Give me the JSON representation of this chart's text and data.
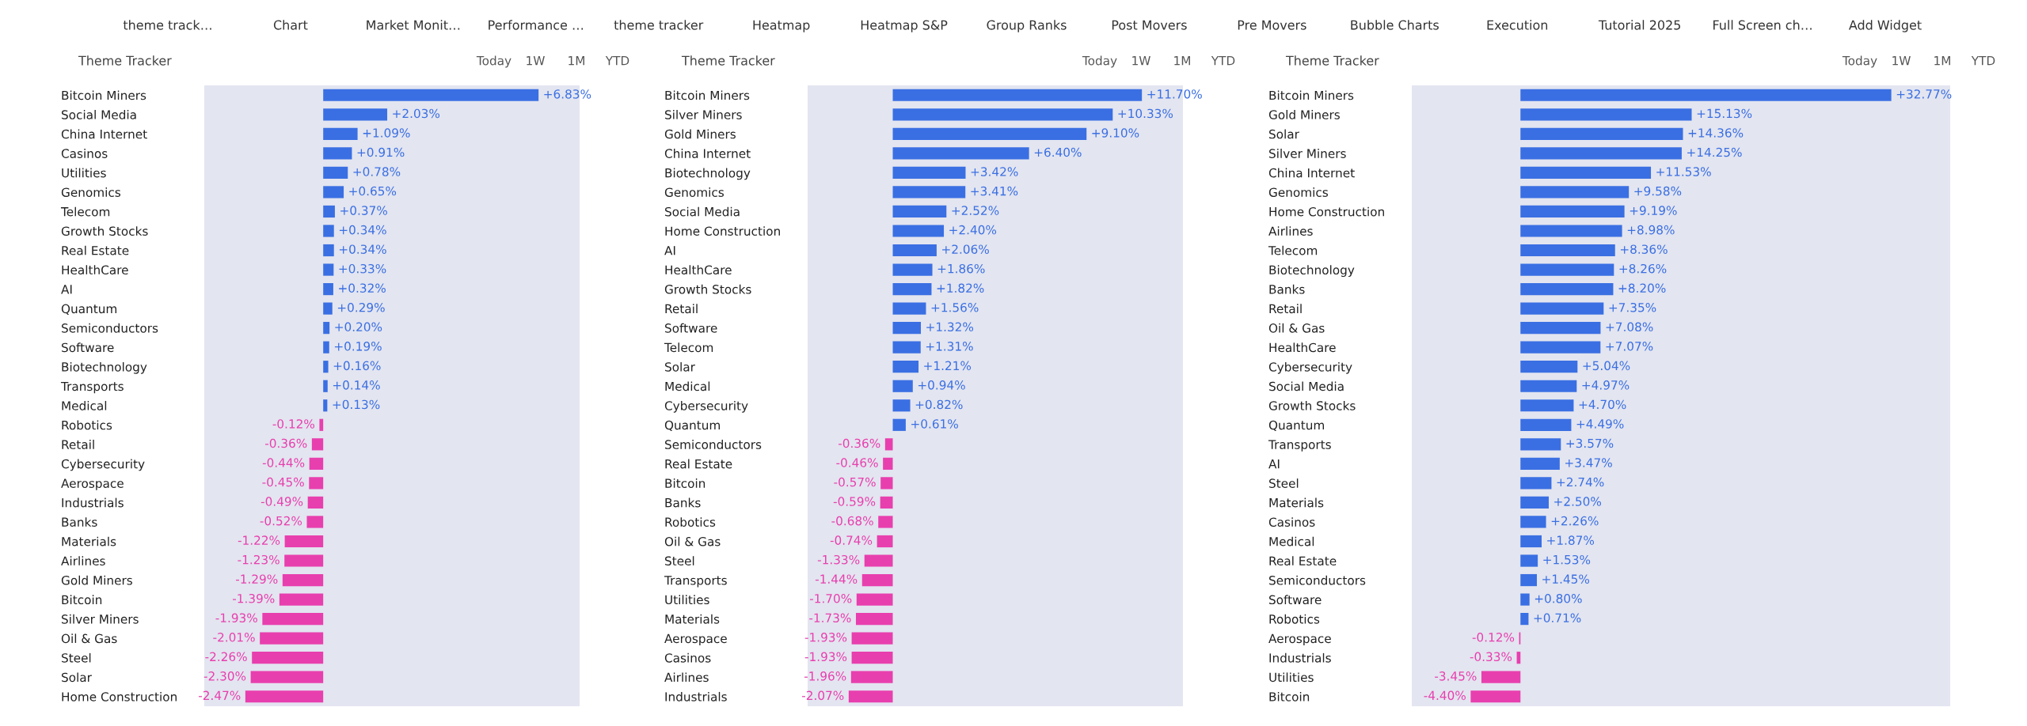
{
  "chart_data": [
    {
      "type": "bar",
      "orientation": "horizontal",
      "title": "Theme Tracker",
      "tick_labels": "y",
      "annotations": [
        "Today",
        "1W",
        "1M",
        "YTD",
        "theme track…",
        "Chart",
        "Market Monit…",
        "Performance …",
        "theme tracker",
        "Heatmap",
        "Heatmap S&P",
        "Group Ranks",
        "Post Movers",
        "Pre Movers",
        "Bubble Charts",
        "Execution",
        "Tutorial 2025",
        "Full Screen ch…",
        "Add Widget"
      ],
      "categories": [
        "Bitcoin Miners",
        "Social Media",
        "China Internet",
        "Casinos",
        "Utilities",
        "Genomics",
        "Telecom",
        "Growth Stocks",
        "Real Estate",
        "HealthCare",
        "AI",
        "Quantum",
        "Semiconductors",
        "Software",
        "Biotechnology",
        "Transports",
        "Medical",
        "Robotics",
        "Retail",
        "Cybersecurity",
        "Aerospace",
        "Industrials",
        "Banks",
        "Materials",
        "Airlines",
        "Gold Miners",
        "Bitcoin",
        "Silver Miners",
        "Oil & Gas",
        "Steel",
        "Solar",
        "Home Construction"
      ],
      "values": [
        6.83,
        2.03,
        1.09,
        0.91,
        0.78,
        0.65,
        0.37,
        0.34,
        0.34,
        0.33,
        0.32,
        0.29,
        0.2,
        0.19,
        0.16,
        0.14,
        0.13,
        -0.12,
        -0.36,
        -0.44,
        -0.45,
        -0.49,
        -0.52,
        -1.22,
        -1.23,
        -1.29,
        -1.39,
        -1.93,
        -2.01,
        -2.26,
        -2.3,
        -2.47
      ],
      "value_labels": [
        "+6.83%",
        "+2.03%",
        "+1.09%",
        "+0.91%",
        "+0.78%",
        "+0.65%",
        "+0.37%",
        "+0.34%",
        "+0.34%",
        "+0.33%",
        "+0.32%",
        "+0.29%",
        "+0.20%",
        "+0.19%",
        "+0.16%",
        "+0.14%",
        "+0.13%",
        "-0.12%",
        "-0.36%",
        "-0.44%",
        "-0.45%",
        "-0.49%",
        "-0.52%",
        "-1.22%",
        "-1.23%",
        "-1.29%",
        "-1.39%",
        "-1.93%",
        "-2.01%",
        "-2.26%",
        "-2.30%",
        "-2.47%"
      ],
      "colors": [
        "#3a6fe3",
        "#3a6fe3",
        "#3a6fe3",
        "#3a6fe3",
        "#3a6fe3",
        "#3a6fe3",
        "#3a6fe3",
        "#3a6fe3",
        "#3a6fe3",
        "#3a6fe3",
        "#3a6fe3",
        "#3a6fe3",
        "#3a6fe3",
        "#3a6fe3",
        "#3a6fe3",
        "#3a6fe3",
        "#3a6fe3",
        "#e83fae",
        "#e83fae",
        "#e83fae",
        "#e83fae",
        "#e83fae",
        "#e83fae",
        "#e83fae",
        "#e83fae",
        "#e83fae",
        "#e83fae",
        "#e83fae",
        "#e83fae",
        "#e83fae",
        "#e83fae",
        "#e83fae"
      ]
    },
    {
      "type": "bar",
      "orientation": "horizontal",
      "title": "Theme Tracker",
      "tick_labels": "y",
      "annotations": [
        "Today",
        "1W",
        "1M",
        "YTD"
      ],
      "categories": [
        "Bitcoin Miners",
        "Silver Miners",
        "Gold Miners",
        "China Internet",
        "Biotechnology",
        "Genomics",
        "Social Media",
        "Home Construction",
        "AI",
        "HealthCare",
        "Growth Stocks",
        "Retail",
        "Software",
        "Telecom",
        "Solar",
        "Medical",
        "Cybersecurity",
        "Quantum",
        "Semiconductors",
        "Real Estate",
        "Bitcoin",
        "Banks",
        "Robotics",
        "Oil & Gas",
        "Steel",
        "Transports",
        "Utilities",
        "Materials",
        "Aerospace",
        "Casinos",
        "Airlines",
        "Industrials"
      ],
      "values": [
        11.7,
        10.33,
        9.1,
        6.4,
        3.42,
        3.41,
        2.52,
        2.4,
        2.06,
        1.86,
        1.82,
        1.56,
        1.32,
        1.31,
        1.21,
        0.94,
        0.82,
        0.61,
        -0.36,
        -0.46,
        -0.57,
        -0.59,
        -0.68,
        -0.74,
        -1.33,
        -1.44,
        -1.7,
        -1.73,
        -1.93,
        -1.93,
        -1.96,
        -2.07
      ],
      "value_labels": [
        "+11.70%",
        "+10.33%",
        "+9.10%",
        "+6.40%",
        "+3.42%",
        "+3.41%",
        "+2.52%",
        "+2.40%",
        "+2.06%",
        "+1.86%",
        "+1.82%",
        "+1.56%",
        "+1.32%",
        "+1.31%",
        "+1.21%",
        "+0.94%",
        "+0.82%",
        "+0.61%",
        "-0.36%",
        "-0.46%",
        "-0.57%",
        "-0.59%",
        "-0.68%",
        "-0.74%",
        "-1.33%",
        "-1.44%",
        "-1.70%",
        "-1.73%",
        "-1.93%",
        "-1.93%",
        "-1.96%",
        "-2.07%"
      ],
      "colors": [
        "#3a6fe3",
        "#3a6fe3",
        "#3a6fe3",
        "#3a6fe3",
        "#3a6fe3",
        "#3a6fe3",
        "#3a6fe3",
        "#3a6fe3",
        "#3a6fe3",
        "#3a6fe3",
        "#3a6fe3",
        "#3a6fe3",
        "#3a6fe3",
        "#3a6fe3",
        "#3a6fe3",
        "#3a6fe3",
        "#3a6fe3",
        "#3a6fe3",
        "#e83fae",
        "#e83fae",
        "#e83fae",
        "#e83fae",
        "#e83fae",
        "#e83fae",
        "#e83fae",
        "#e83fae",
        "#e83fae",
        "#e83fae",
        "#e83fae",
        "#e83fae",
        "#e83fae",
        "#e83fae"
      ]
    },
    {
      "type": "bar",
      "orientation": "horizontal",
      "title": "Theme Tracker",
      "tick_labels": "y",
      "annotations": [
        "Today",
        "1W",
        "1M",
        "YTD"
      ],
      "categories": [
        "Bitcoin Miners",
        "Gold Miners",
        "Solar",
        "Silver Miners",
        "China Internet",
        "Genomics",
        "Home Construction",
        "Airlines",
        "Telecom",
        "Biotechnology",
        "Banks",
        "Retail",
        "Oil & Gas",
        "HealthCare",
        "Cybersecurity",
        "Social Media",
        "Growth Stocks",
        "Quantum",
        "Transports",
        "AI",
        "Steel",
        "Materials",
        "Casinos",
        "Medical",
        "Real Estate",
        "Semiconductors",
        "Software",
        "Robotics",
        "Aerospace",
        "Industrials",
        "Utilities",
        "Bitcoin"
      ],
      "values": [
        32.77,
        15.13,
        14.36,
        14.25,
        11.53,
        9.58,
        9.19,
        8.98,
        8.36,
        8.26,
        8.2,
        7.35,
        7.08,
        7.07,
        5.04,
        4.97,
        4.7,
        4.49,
        3.57,
        3.47,
        2.74,
        2.5,
        2.26,
        1.87,
        1.53,
        1.45,
        0.8,
        0.71,
        -0.12,
        -0.33,
        -3.45,
        -4.4
      ],
      "value_labels": [
        "+32.77%",
        "+15.13%",
        "+14.36%",
        "+14.25%",
        "+11.53%",
        "+9.58%",
        "+9.19%",
        "+8.98%",
        "+8.36%",
        "+8.26%",
        "+8.20%",
        "+7.35%",
        "+7.08%",
        "+7.07%",
        "+5.04%",
        "+4.97%",
        "+4.70%",
        "+4.49%",
        "+3.57%",
        "+3.47%",
        "+2.74%",
        "+2.50%",
        "+2.26%",
        "+1.87%",
        "+1.53%",
        "+1.45%",
        "+0.80%",
        "+0.71%",
        "-0.12%",
        "-0.33%",
        "-3.45%",
        "-4.40%"
      ],
      "colors": [
        "#3a6fe3",
        "#3a6fe3",
        "#3a6fe3",
        "#3a6fe3",
        "#3a6fe3",
        "#3a6fe3",
        "#3a6fe3",
        "#3a6fe3",
        "#3a6fe3",
        "#3a6fe3",
        "#3a6fe3",
        "#3a6fe3",
        "#3a6fe3",
        "#3a6fe3",
        "#3a6fe3",
        "#3a6fe3",
        "#3a6fe3",
        "#3a6fe3",
        "#3a6fe3",
        "#3a6fe3",
        "#3a6fe3",
        "#3a6fe3",
        "#3a6fe3",
        "#3a6fe3",
        "#3a6fe3",
        "#3a6fe3",
        "#3a6fe3",
        "#3a6fe3",
        "#e83fae",
        "#e83fae",
        "#e83fae",
        "#e83fae"
      ]
    }
  ]
}
